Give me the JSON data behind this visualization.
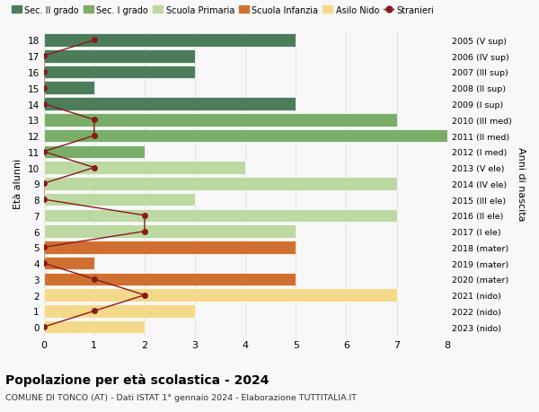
{
  "ages": [
    18,
    17,
    16,
    15,
    14,
    13,
    12,
    11,
    10,
    9,
    8,
    7,
    6,
    5,
    4,
    3,
    2,
    1,
    0
  ],
  "years": [
    "2005 (V sup)",
    "2006 (IV sup)",
    "2007 (III sup)",
    "2008 (II sup)",
    "2009 (I sup)",
    "2010 (III med)",
    "2011 (II med)",
    "2012 (I med)",
    "2013 (V ele)",
    "2014 (IV ele)",
    "2015 (III ele)",
    "2016 (II ele)",
    "2017 (I ele)",
    "2018 (mater)",
    "2019 (mater)",
    "2020 (mater)",
    "2021 (nido)",
    "2022 (nido)",
    "2023 (nido)"
  ],
  "bar_values": [
    5,
    3,
    3,
    1,
    5,
    7,
    8,
    2,
    4,
    7,
    3,
    7,
    5,
    5,
    1,
    5,
    7,
    3,
    2
  ],
  "bar_colors": [
    "#4d7c5a",
    "#4d7c5a",
    "#4d7c5a",
    "#4d7c5a",
    "#4d7c5a",
    "#7aad6a",
    "#7aad6a",
    "#7aad6a",
    "#bdd9a3",
    "#bdd9a3",
    "#bdd9a3",
    "#bdd9a3",
    "#bdd9a3",
    "#d07030",
    "#d07030",
    "#d07030",
    "#f5d98b",
    "#f5d98b",
    "#f5d98b"
  ],
  "stranieri_x": [
    1,
    0,
    0,
    0,
    0,
    1,
    1,
    0,
    1,
    0,
    0,
    2,
    2,
    0,
    0,
    1,
    2,
    1,
    0
  ],
  "title": "Popolazione per età scolastica - 2024",
  "subtitle": "COMUNE DI TONCO (AT) - Dati ISTAT 1° gennaio 2024 - Elaborazione TUTTITALIA.IT",
  "ylabel_left": "Età alunni",
  "ylabel_right": "Anni di nascita",
  "color_sec2": "#4d7c5a",
  "color_sec1": "#7aad6a",
  "color_prim": "#bdd9a3",
  "color_infanzia": "#d07030",
  "color_nido": "#f5d98b",
  "color_stranieri": "#8b1a1a",
  "bg_color": "#f8f8f8",
  "grid_color": "#d0d0d0"
}
